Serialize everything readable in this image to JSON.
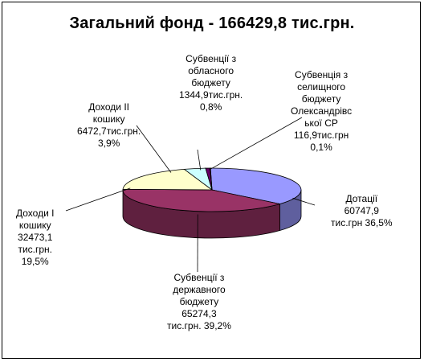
{
  "chart_data": {
    "type": "pie",
    "style": "3d",
    "title": "Загальний фонд - 166429,8 тис.грн.",
    "slices": [
      {
        "name": "Дотації",
        "value": 60747.9,
        "percent": 36.5,
        "color": "#9999ff",
        "label_lines": [
          "Дотації",
          "60747,9",
          "тис.грн 36,5%"
        ]
      },
      {
        "name": "Субвенції з державного бюджету",
        "value": 65274.3,
        "percent": 39.2,
        "color": "#993366",
        "label_lines": [
          "Субвенції з",
          "державного",
          "бюджету",
          "65274,3",
          "тис.грн. 39,2%"
        ]
      },
      {
        "name": "Доходи І кошику",
        "value": 32473.1,
        "percent": 19.5,
        "color": "#ffffcc",
        "label_lines": [
          "Доходи І",
          "кошику",
          "32473,1",
          "тис.грн.",
          "19,5%"
        ]
      },
      {
        "name": "Доходи ІІ кошику",
        "value": 6472.7,
        "percent": 3.9,
        "color": "#ccffff",
        "label_lines": [
          "Доходи ІІ",
          "кошику",
          "6472,7тис.грн.",
          "3,9%"
        ]
      },
      {
        "name": "Субвенції з обласного бюджету",
        "value": 1344.9,
        "percent": 0.8,
        "color": "#660066",
        "label_lines": [
          "Субвенції з",
          "обласного",
          "бюджету",
          "1344,9тис.грн.",
          "0,8%"
        ]
      },
      {
        "name": "Субвенція з селищного бюджету Олександрівської СР",
        "value": 116.9,
        "percent": 0.1,
        "color": "#ff8080",
        "label_lines": [
          "Субвенція з",
          "селищного",
          "бюджету",
          "Олександрівс",
          "ької СР",
          "116,9тис.грн",
          "0,1%"
        ]
      }
    ]
  }
}
